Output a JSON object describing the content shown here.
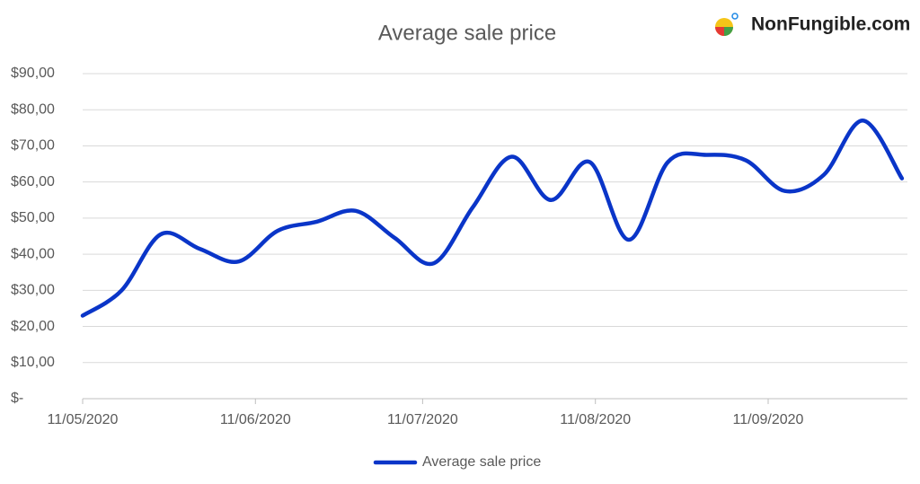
{
  "chart_data": {
    "type": "line",
    "title": "Average sale price",
    "x": [
      "11/05/2020",
      "18/05/2020",
      "25/05/2020",
      "01/06/2020",
      "08/06/2020",
      "15/06/2020",
      "22/06/2020",
      "29/06/2020",
      "06/07/2020",
      "13/07/2020",
      "20/07/2020",
      "27/07/2020",
      "03/08/2020",
      "10/08/2020",
      "17/08/2020",
      "24/08/2020",
      "31/08/2020",
      "07/09/2020",
      "14/09/2020",
      "21/09/2020",
      "28/09/2020",
      "05/10/2020"
    ],
    "series": [
      {
        "name": "Average sale price",
        "color": "#0a35c8",
        "values": [
          23,
          30,
          45.5,
          41.5,
          38,
          46.5,
          49,
          52,
          44.5,
          37.5,
          53,
          67,
          55,
          65.5,
          44,
          65.5,
          67.5,
          66,
          57.5,
          62,
          77,
          61
        ]
      }
    ],
    "xticks": [
      "11/05/2020",
      "11/06/2020",
      "11/07/2020",
      "11/08/2020",
      "11/09/2020"
    ],
    "ylim": [
      0,
      90
    ],
    "yticks": [
      {
        "value": 0,
        "label": "$-"
      },
      {
        "value": 10,
        "label": "$10,00"
      },
      {
        "value": 20,
        "label": "$20,00"
      },
      {
        "value": 30,
        "label": "$30,00"
      },
      {
        "value": 40,
        "label": "$40,00"
      },
      {
        "value": 50,
        "label": "$50,00"
      },
      {
        "value": 60,
        "label": "$60,00"
      },
      {
        "value": 70,
        "label": "$70,00"
      },
      {
        "value": 80,
        "label": "$80,00"
      },
      {
        "value": 90,
        "label": "$90,00"
      }
    ],
    "grid": true,
    "legend": "bottom"
  },
  "brand": "NonFungible.com"
}
